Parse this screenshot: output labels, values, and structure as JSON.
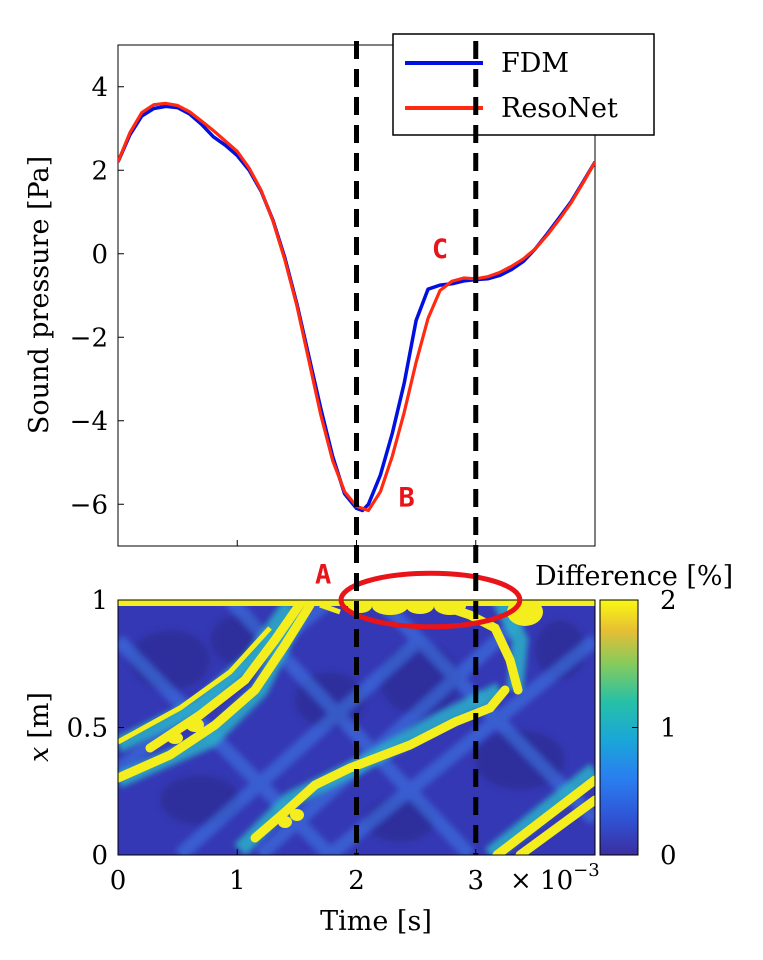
{
  "chart_data": [
    {
      "type": "line",
      "ylabel": "Sound pressure [Pa]",
      "xlim": [
        0,
        0.004
      ],
      "ylim": [
        -7,
        5
      ],
      "yticks": [
        4,
        2,
        0,
        -2,
        -4,
        -6
      ],
      "ytick_labels": [
        "4",
        "2",
        "0",
        "−2",
        "−4",
        "−6"
      ],
      "xticks": [
        0,
        0.001,
        0.002,
        0.003,
        0.004
      ],
      "grid": false,
      "legend": {
        "placement": "top-right",
        "entries": [
          "FDM",
          "ResoNet"
        ]
      },
      "colors": {
        "FDM": "#0010e0",
        "ResoNet": "#ff2a10",
        "guides": "#000000",
        "annotations": "#e8141a"
      },
      "series": [
        {
          "name": "FDM",
          "x": [
            0,
            0.0001,
            0.0002,
            0.0003,
            0.0004,
            0.0005,
            0.0006,
            0.0007,
            0.0008,
            0.0009,
            0.001,
            0.0011,
            0.0012,
            0.0013,
            0.0014,
            0.0015,
            0.0016,
            0.0017,
            0.0018,
            0.0019,
            0.002,
            0.00205,
            0.0021,
            0.0022,
            0.0023,
            0.0024,
            0.0025,
            0.0026,
            0.0027,
            0.0028,
            0.0029,
            0.003,
            0.0031,
            0.0032,
            0.0033,
            0.0034,
            0.0035,
            0.0036,
            0.0037,
            0.0038,
            0.0039,
            0.004
          ],
          "y": [
            2.2,
            2.85,
            3.3,
            3.48,
            3.53,
            3.5,
            3.35,
            3.1,
            2.8,
            2.6,
            2.35,
            2.0,
            1.5,
            0.8,
            -0.1,
            -1.2,
            -2.45,
            -3.7,
            -4.85,
            -5.75,
            -6.1,
            -6.15,
            -6.0,
            -5.3,
            -4.3,
            -3.1,
            -1.6,
            -0.85,
            -0.75,
            -0.72,
            -0.65,
            -0.62,
            -0.6,
            -0.52,
            -0.38,
            -0.18,
            0.12,
            0.48,
            0.86,
            1.25,
            1.72,
            2.2
          ]
        },
        {
          "name": "ResoNet",
          "x": [
            0,
            0.0001,
            0.0002,
            0.0003,
            0.0004,
            0.0005,
            0.0006,
            0.0007,
            0.0008,
            0.0009,
            0.001,
            0.0011,
            0.0012,
            0.0013,
            0.0014,
            0.0015,
            0.0016,
            0.0017,
            0.0018,
            0.0019,
            0.002,
            0.0021,
            0.0022,
            0.0023,
            0.0024,
            0.0025,
            0.0026,
            0.0027,
            0.0028,
            0.0029,
            0.003,
            0.0031,
            0.0032,
            0.0033,
            0.0034,
            0.0035,
            0.0036,
            0.0037,
            0.0038,
            0.0039,
            0.004
          ],
          "y": [
            2.2,
            2.9,
            3.38,
            3.57,
            3.6,
            3.55,
            3.4,
            3.18,
            2.95,
            2.7,
            2.45,
            2.05,
            1.52,
            0.78,
            -0.15,
            -1.25,
            -2.55,
            -3.85,
            -4.95,
            -5.7,
            -6.05,
            -6.15,
            -5.7,
            -4.85,
            -3.8,
            -2.6,
            -1.55,
            -0.88,
            -0.66,
            -0.58,
            -0.6,
            -0.55,
            -0.45,
            -0.3,
            -0.12,
            0.12,
            0.45,
            0.82,
            1.22,
            1.7,
            2.2
          ]
        }
      ],
      "vlines": [
        0.002,
        0.003
      ],
      "annotations": [
        {
          "text": "B",
          "x": 0.00242,
          "y": -6.05
        },
        {
          "text": "C",
          "x": 0.0027,
          "y": -0.1
        }
      ]
    },
    {
      "type": "heatmap",
      "xlabel": "Time [s]",
      "ylabel": "x [m]",
      "ylabel_var": "x",
      "ylabel_unit": "[m]",
      "xlim": [
        0,
        0.004
      ],
      "ylim": [
        0,
        1
      ],
      "xticks": [
        0,
        0.001,
        0.002,
        0.003
      ],
      "xtick_labels": [
        "0",
        "1",
        "2",
        "3"
      ],
      "x_multiplier": "× 10",
      "x_exponent": "−3",
      "yticks": [
        0,
        0.5,
        1
      ],
      "ytick_labels": [
        "0",
        "0.5",
        "1"
      ],
      "colorbar": {
        "label": "Difference [%]",
        "ticks": [
          "0",
          "1",
          "2"
        ],
        "range": [
          0,
          2
        ]
      },
      "vlines": [
        0.002,
        0.003
      ],
      "annotations": [
        {
          "text": "A",
          "x": 0.00172,
          "y": 1.05
        }
      ],
      "ellipse": {
        "center_x": 0.00262,
        "center_y": 1.0,
        "half_width_x": 0.00075,
        "half_height_y": 0.105
      }
    }
  ]
}
